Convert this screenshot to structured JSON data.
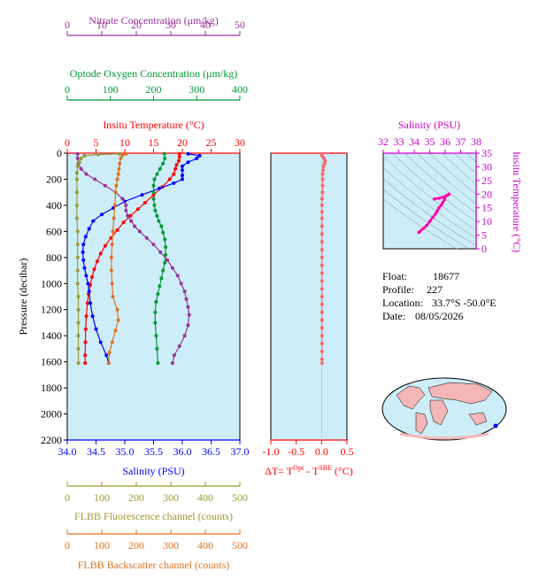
{
  "colors": {
    "nitrate": "#993399",
    "oxygen": "#009933",
    "temperature": "#ff0000",
    "salinity": "#0000ff",
    "fluorescence": "#999933",
    "backscatter": "#e07020",
    "ts_axis": "#cc00cc",
    "delta": "#ff6666",
    "panel_bg": "#cdeef9"
  },
  "info": {
    "float_label": "Float:",
    "float_value": "18677",
    "profile_label": "Profile:",
    "profile_value": "227",
    "location_label": "Location:",
    "location_value": "33.7°S  -50.0°E",
    "date_label": "Date:",
    "date_value": "08/05/2026"
  },
  "chart_data": [
    {
      "type": "line",
      "panel": "main-profile",
      "ylabel": "Pressure (decibar)",
      "ylim": [
        2200,
        0
      ],
      "yticks": [
        0,
        200,
        400,
        600,
        800,
        1000,
        1200,
        1400,
        1600,
        1800,
        2000,
        2200
      ],
      "grid": false,
      "axes": {
        "nitrate": {
          "label": "Nitrate Concentration (μm/kg)",
          "range": [
            0,
            50
          ],
          "ticks": [
            0,
            10,
            20,
            30,
            40,
            50
          ]
        },
        "oxygen": {
          "label": "Optode Oxygen Concentration (μm/kg)",
          "range": [
            0,
            400
          ],
          "ticks": [
            0,
            100,
            200,
            300,
            400
          ]
        },
        "temperature": {
          "label": "Insitu Temperature (°C)",
          "range": [
            0,
            30
          ],
          "ticks": [
            0,
            5,
            10,
            15,
            20,
            25,
            30
          ]
        },
        "salinity": {
          "label": "Salinity (PSU)",
          "range": [
            34.0,
            37.0
          ],
          "ticks": [
            "34.0",
            "34.5",
            "35.0",
            "35.5",
            "36.0",
            "36.5",
            "37.0"
          ]
        },
        "fluorescence": {
          "label": "FLBB Fluorescence channel (counts)",
          "range": [
            0,
            500
          ],
          "ticks": [
            0,
            100,
            200,
            300,
            400,
            500
          ]
        },
        "backscatter": {
          "label": "FLBB Backscatter channel (counts)",
          "range": [
            0,
            500
          ],
          "ticks": [
            0,
            100,
            200,
            300,
            400,
            500
          ]
        }
      },
      "series": [
        {
          "key": "temperature",
          "axis": "temperature",
          "points": [
            [
              19.5,
              5
            ],
            [
              19.5,
              30
            ],
            [
              19.4,
              60
            ],
            [
              19.0,
              90
            ],
            [
              18.8,
              120
            ],
            [
              18.5,
              160
            ],
            [
              17.8,
              200
            ],
            [
              16.5,
              260
            ],
            [
              15.0,
              320
            ],
            [
              13.5,
              380
            ],
            [
              12.3,
              430
            ],
            [
              11.0,
              480
            ],
            [
              9.8,
              530
            ],
            [
              8.7,
              590
            ],
            [
              7.6,
              650
            ],
            [
              6.6,
              710
            ],
            [
              5.8,
              770
            ],
            [
              5.2,
              830
            ],
            [
              4.7,
              890
            ],
            [
              4.3,
              950
            ],
            [
              4.0,
              1010
            ],
            [
              3.7,
              1080
            ],
            [
              3.5,
              1150
            ],
            [
              3.3,
              1250
            ],
            [
              3.2,
              1350
            ],
            [
              3.15,
              1450
            ],
            [
              3.1,
              1550
            ],
            [
              3.1,
              1610
            ]
          ]
        },
        {
          "key": "salinity",
          "axis": "salinity",
          "points": [
            [
              36.1,
              5
            ],
            [
              36.3,
              20
            ],
            [
              36.25,
              40
            ],
            [
              36.1,
              70
            ],
            [
              36.0,
              100
            ],
            [
              36.0,
              130
            ],
            [
              36.0,
              170
            ],
            [
              36.0,
              200
            ],
            [
              35.85,
              230
            ],
            [
              35.6,
              270
            ],
            [
              35.3,
              320
            ],
            [
              35.0,
              370
            ],
            [
              34.8,
              420
            ],
            [
              34.6,
              470
            ],
            [
              34.45,
              520
            ],
            [
              34.38,
              580
            ],
            [
              34.32,
              640
            ],
            [
              34.28,
              700
            ],
            [
              34.27,
              760
            ],
            [
              34.28,
              820
            ],
            [
              34.3,
              880
            ],
            [
              34.33,
              940
            ],
            [
              34.36,
              1000
            ],
            [
              34.38,
              1060
            ],
            [
              34.4,
              1150
            ],
            [
              34.44,
              1250
            ],
            [
              34.5,
              1350
            ],
            [
              34.58,
              1450
            ],
            [
              34.68,
              1550
            ],
            [
              34.72,
              1610
            ]
          ]
        },
        {
          "key": "oxygen",
          "axis": "oxygen",
          "points": [
            [
              225,
              5
            ],
            [
              226,
              40
            ],
            [
              222,
              80
            ],
            [
              215,
              120
            ],
            [
              208,
              160
            ],
            [
              202,
              200
            ],
            [
              200,
              250
            ],
            [
              200,
              300
            ],
            [
              200,
              350
            ],
            [
              202,
              400
            ],
            [
              204,
              440
            ],
            [
              208,
              480
            ],
            [
              212,
              520
            ],
            [
              218,
              560
            ],
            [
              222,
              610
            ],
            [
              226,
              660
            ],
            [
              228,
              720
            ],
            [
              228,
              780
            ],
            [
              226,
              840
            ],
            [
              222,
              900
            ],
            [
              218,
              960
            ],
            [
              214,
              1020
            ],
            [
              210,
              1080
            ],
            [
              206,
              1140
            ],
            [
              204,
              1220
            ],
            [
              204,
              1300
            ],
            [
              206,
              1400
            ],
            [
              208,
              1500
            ],
            [
              210,
              1610
            ]
          ]
        },
        {
          "key": "nitrate",
          "axis": "nitrate",
          "points": [
            [
              3,
              5
            ],
            [
              3,
              40
            ],
            [
              3.2,
              80
            ],
            [
              4,
              120
            ],
            [
              5.5,
              160
            ],
            [
              8,
              200
            ],
            [
              11,
              250
            ],
            [
              14,
              300
            ],
            [
              16,
              350
            ],
            [
              17,
              400
            ],
            [
              17,
              440
            ],
            [
              17.5,
              480
            ],
            [
              18.5,
              520
            ],
            [
              19.5,
              560
            ],
            [
              21,
              600
            ],
            [
              23,
              650
            ],
            [
              25,
              700
            ],
            [
              27,
              760
            ],
            [
              29,
              820
            ],
            [
              30.5,
              880
            ],
            [
              32,
              940
            ],
            [
              33,
              1000
            ],
            [
              34,
              1060
            ],
            [
              34.5,
              1120
            ],
            [
              35,
              1180
            ],
            [
              35.3,
              1240
            ],
            [
              35,
              1320
            ],
            [
              34,
              1400
            ],
            [
              32.5,
              1480
            ],
            [
              31,
              1550
            ],
            [
              30.5,
              1610
            ]
          ]
        },
        {
          "key": "fluorescence",
          "axis": "fluorescence",
          "points": [
            [
              150,
              5
            ],
            [
              90,
              10
            ],
            [
              50,
              20
            ],
            [
              40,
              40
            ],
            [
              35,
              70
            ],
            [
              30,
              100
            ],
            [
              28,
              150
            ],
            [
              28,
              200
            ],
            [
              28,
              300
            ],
            [
              28,
              400
            ],
            [
              28,
              500
            ],
            [
              30,
              600
            ],
            [
              30,
              700
            ],
            [
              30,
              800
            ],
            [
              30,
              900
            ],
            [
              30,
              1000
            ],
            [
              32,
              1100
            ],
            [
              32,
              1200
            ],
            [
              32,
              1300
            ],
            [
              32,
              1400
            ],
            [
              32,
              1500
            ],
            [
              32,
              1610
            ]
          ]
        },
        {
          "key": "backscatter",
          "axis": "backscatter",
          "points": [
            [
              170,
              5
            ],
            [
              160,
              15
            ],
            [
              155,
              40
            ],
            [
              152,
              80
            ],
            [
              150,
              120
            ],
            [
              148,
              160
            ],
            [
              145,
              200
            ],
            [
              142,
              250
            ],
            [
              140,
              300
            ],
            [
              138,
              400
            ],
            [
              135,
              500
            ],
            [
              132,
              600
            ],
            [
              130,
              700
            ],
            [
              128,
              800
            ],
            [
              128,
              900
            ],
            [
              130,
              1000
            ],
            [
              132,
              1100
            ],
            [
              145,
              1200
            ],
            [
              148,
              1280
            ],
            [
              140,
              1360
            ],
            [
              130,
              1450
            ],
            [
              122,
              1530
            ],
            [
              120,
              1610
            ]
          ]
        }
      ]
    },
    {
      "type": "scatter",
      "panel": "delta-t",
      "xlabel_main": "ΔT= T",
      "xlabel_sup1": "Opt",
      "xlabel_mid": " - T",
      "xlabel_sup2": "SBE",
      "xlabel_unit": " (°C)",
      "xlim": [
        -1.0,
        0.5
      ],
      "xticks": [
        "-1.0",
        "-0.5",
        "0.0",
        "0.5"
      ],
      "ylim": [
        2200,
        0
      ],
      "points": [
        [
          0.0,
          5
        ],
        [
          0.01,
          20
        ],
        [
          0.05,
          40
        ],
        [
          0.07,
          60
        ],
        [
          0.06,
          80
        ],
        [
          0.04,
          100
        ],
        [
          0.03,
          130
        ],
        [
          0.02,
          160
        ],
        [
          0.02,
          200
        ],
        [
          0.02,
          250
        ],
        [
          0.02,
          300
        ],
        [
          0.01,
          350
        ],
        [
          0.01,
          400
        ],
        [
          0.01,
          450
        ],
        [
          0.01,
          500
        ],
        [
          0.01,
          560
        ],
        [
          0.01,
          620
        ],
        [
          0.01,
          680
        ],
        [
          0.01,
          740
        ],
        [
          0.01,
          800
        ],
        [
          0.01,
          860
        ],
        [
          0.01,
          920
        ],
        [
          0.01,
          980
        ],
        [
          0.01,
          1040
        ],
        [
          0.01,
          1100
        ],
        [
          0.01,
          1160
        ],
        [
          0.01,
          1220
        ],
        [
          0.01,
          1280
        ],
        [
          0.01,
          1340
        ],
        [
          0.01,
          1400
        ],
        [
          0.01,
          1460
        ],
        [
          0.01,
          1520
        ],
        [
          0.01,
          1580
        ],
        [
          0.01,
          1610
        ]
      ]
    },
    {
      "type": "scatter",
      "panel": "ts-diagram",
      "xlabel": "Salinity (PSU)",
      "ylabel": "Insitu Temperature (°C)",
      "xlim": [
        32,
        38
      ],
      "xticks": [
        32,
        33,
        34,
        35,
        36,
        37,
        38
      ],
      "ylim": [
        0,
        35
      ],
      "yticks": [
        0,
        5,
        10,
        15,
        20,
        25,
        30,
        35
      ],
      "points": [
        [
          34.3,
          6
        ],
        [
          34.4,
          6.5
        ],
        [
          34.6,
          7.5
        ],
        [
          34.8,
          8.5
        ],
        [
          35.0,
          10
        ],
        [
          35.2,
          11.5
        ],
        [
          35.4,
          13
        ],
        [
          35.5,
          14
        ],
        [
          35.6,
          15
        ],
        [
          35.75,
          16
        ],
        [
          35.85,
          17
        ],
        [
          35.95,
          18
        ],
        [
          36.0,
          19
        ],
        [
          36.1,
          19.5
        ],
        [
          36.25,
          20
        ],
        [
          36.15,
          19.6
        ],
        [
          35.9,
          19
        ],
        [
          35.6,
          18.5
        ],
        [
          35.3,
          18.2
        ]
      ]
    }
  ],
  "map": {
    "marker_color": "#0000ff"
  }
}
